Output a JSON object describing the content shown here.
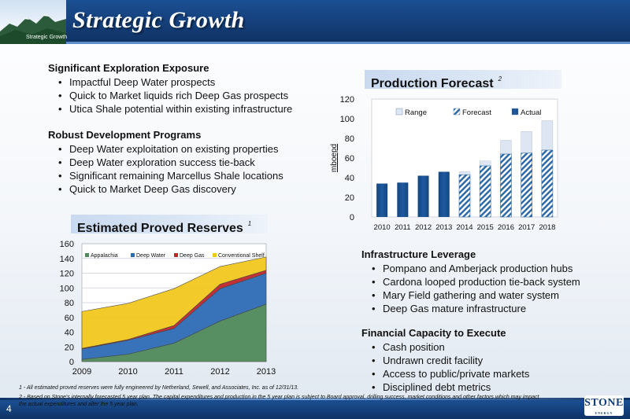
{
  "header": {
    "title": "Strategic Growth",
    "breadcrumb": "Strategic Growth"
  },
  "sections": {
    "exploration": {
      "heading": "Significant Exploration Exposure",
      "items": [
        "Impactful Deep Water prospects",
        "Quick to Market liquids rich Deep Gas prospects",
        "Utica Shale potential within existing infrastructure"
      ]
    },
    "development": {
      "heading": "Robust Development Programs",
      "items": [
        "Deep Water exploitation on existing properties",
        "Deep Water exploration success tie-back",
        "Significant remaining Marcellus Shale locations",
        "Quick to Market Deep Gas discovery"
      ]
    },
    "infrastructure": {
      "heading": "Infrastructure Leverage",
      "items": [
        "Pompano and Amberjack production hubs",
        "Cardona looped production tie-back system",
        "Mary Field gathering and water system",
        "Deep Gas mature infrastructure"
      ]
    },
    "financial": {
      "heading": "Financial Capacity to Execute",
      "items": [
        "Cash position",
        "Undrawn credit facility",
        "Access to public/private markets",
        "Disciplined debt metrics"
      ]
    }
  },
  "chart_titles": {
    "production": "Production Forecast",
    "production_note": "2",
    "reserves": "Estimated Proved Reserves",
    "reserves_note": "1"
  },
  "chart_data": [
    {
      "type": "bar",
      "title": "Production Forecast",
      "xlabel": "",
      "ylabel": "mboepd",
      "ylim": [
        0,
        120
      ],
      "yticks": [
        0,
        20,
        40,
        60,
        80,
        100,
        120
      ],
      "categories": [
        "2010",
        "2011",
        "2012",
        "2013",
        "2014",
        "2015",
        "2016",
        "2017",
        "2018"
      ],
      "legend_position": "top",
      "series": [
        {
          "name": "Range",
          "values": [
            null,
            null,
            null,
            null,
            3,
            5,
            14,
            22,
            30
          ],
          "stacked_on": "Forecast"
        },
        {
          "name": "Forecast",
          "values": [
            null,
            null,
            null,
            null,
            43,
            52,
            64,
            65,
            68
          ]
        },
        {
          "name": "Actual",
          "values": [
            34,
            35,
            42,
            46,
            null,
            null,
            null,
            null,
            null
          ]
        }
      ],
      "colors": {
        "Range": "#dde6f2",
        "Forecast": "#2f6aa8",
        "Actual": "#1e5aa0"
      },
      "grid": false
    },
    {
      "type": "area",
      "title": "Estimated Proved Reserves",
      "xlabel": "",
      "ylabel": "",
      "ylim": [
        0,
        160
      ],
      "yticks": [
        0,
        20,
        40,
        60,
        80,
        100,
        120,
        140,
        160
      ],
      "x": [
        "2009",
        "2010",
        "2011",
        "2012",
        "2013"
      ],
      "stacked": true,
      "legend_position": "top",
      "series": [
        {
          "name": "Appalachia",
          "values": [
            3,
            10,
            25,
            55,
            78
          ]
        },
        {
          "name": "Deep Water",
          "values": [
            14,
            19,
            20,
            44,
            42
          ]
        },
        {
          "name": "Deep Gas",
          "values": [
            1,
            1,
            4,
            6,
            4
          ]
        },
        {
          "name": "Conventional Shelf",
          "values": [
            50,
            49,
            50,
            24,
            18
          ]
        }
      ],
      "colors": {
        "Appalachia": "#4f8a5b",
        "Deep Water": "#2e6bb5",
        "Deep Gas": "#c0272d",
        "Conventional Shelf": "#f2c81e"
      },
      "grid": true
    }
  ],
  "footnotes": {
    "fn1": "1 - All estimated proved reserves were fully engineered by Netherland, Sewell, and Associates, Inc. as of 12/31/13.",
    "fn2": "2 - Based on Stone's internally forecasted 5 year plan. The capital expenditures and production in the 5 year plan is subject to Board approval, drilling success, market conditions and other factors which may impact  the actual expenditures and alter the 5 year plan."
  },
  "footer": {
    "page_number": "4",
    "logo_text": "STONE",
    "logo_sub": "ENERGY"
  }
}
